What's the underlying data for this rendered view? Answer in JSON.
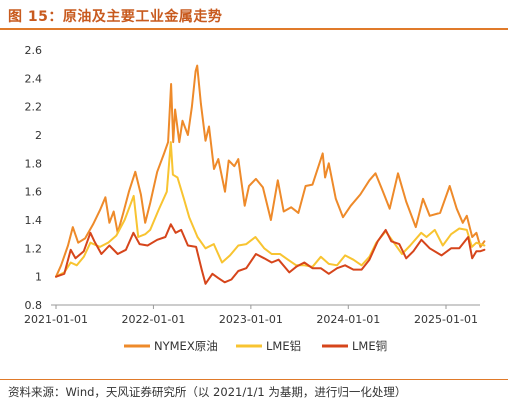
{
  "figure": {
    "title": "图 15：原油及主要工业金属走势",
    "source": "资料来源：Wind，天风证券研究所（以 2021/1/1 为基期，进行归一化处理）"
  },
  "colors": {
    "nymex": "#ee8a2a",
    "lme_al": "#f8c431",
    "lme_cu": "#d6451b",
    "rule": "#e07a2a"
  },
  "chart_data": {
    "type": "line",
    "title": "",
    "xlabel": "",
    "ylabel": "",
    "x_ticks": [
      "2021-01-01",
      "2022-01-01",
      "2023-01-01",
      "2024-01-01",
      "2025-01-01"
    ],
    "ylim": [
      0.8,
      2.6
    ],
    "y_ticks": [
      "0.8",
      "1",
      "1.2",
      "1.4",
      "1.6",
      "1.8",
      "2",
      "2.2",
      "2.4",
      "2.6"
    ],
    "grid": false,
    "legend_position": "bottom",
    "series": [
      {
        "name": "NYMEX原油",
        "color_key": "nymex",
        "points": [
          [
            "2021-01-01",
            1.0
          ],
          [
            "2021-01-20",
            1.08
          ],
          [
            "2021-02-15",
            1.22
          ],
          [
            "2021-03-05",
            1.35
          ],
          [
            "2021-03-25",
            1.24
          ],
          [
            "2021-04-20",
            1.27
          ],
          [
            "2021-05-20",
            1.37
          ],
          [
            "2021-06-15",
            1.47
          ],
          [
            "2021-07-05",
            1.56
          ],
          [
            "2021-07-20",
            1.38
          ],
          [
            "2021-08-05",
            1.46
          ],
          [
            "2021-08-20",
            1.31
          ],
          [
            "2021-09-10",
            1.45
          ],
          [
            "2021-10-01",
            1.6
          ],
          [
            "2021-10-25",
            1.74
          ],
          [
            "2021-11-15",
            1.58
          ],
          [
            "2021-12-01",
            1.38
          ],
          [
            "2021-12-20",
            1.52
          ],
          [
            "2022-01-15",
            1.74
          ],
          [
            "2022-02-10",
            1.87
          ],
          [
            "2022-02-25",
            1.95
          ],
          [
            "2022-03-08",
            2.36
          ],
          [
            "2022-03-16",
            1.95
          ],
          [
            "2022-03-23",
            2.18
          ],
          [
            "2022-04-08",
            1.95
          ],
          [
            "2022-04-20",
            2.1
          ],
          [
            "2022-05-10",
            2.0
          ],
          [
            "2022-05-25",
            2.2
          ],
          [
            "2022-06-08",
            2.45
          ],
          [
            "2022-06-14",
            2.49
          ],
          [
            "2022-06-28",
            2.22
          ],
          [
            "2022-07-15",
            1.96
          ],
          [
            "2022-07-28",
            2.06
          ],
          [
            "2022-08-16",
            1.76
          ],
          [
            "2022-09-01",
            1.83
          ],
          [
            "2022-09-26",
            1.6
          ],
          [
            "2022-10-10",
            1.82
          ],
          [
            "2022-10-31",
            1.78
          ],
          [
            "2022-11-15",
            1.83
          ],
          [
            "2022-12-09",
            1.5
          ],
          [
            "2022-12-25",
            1.64
          ],
          [
            "2023-01-20",
            1.69
          ],
          [
            "2023-02-15",
            1.63
          ],
          [
            "2023-03-17",
            1.4
          ],
          [
            "2023-04-12",
            1.68
          ],
          [
            "2023-05-04",
            1.46
          ],
          [
            "2023-06-01",
            1.49
          ],
          [
            "2023-06-28",
            1.45
          ],
          [
            "2023-07-25",
            1.64
          ],
          [
            "2023-08-20",
            1.65
          ],
          [
            "2023-09-27",
            1.87
          ],
          [
            "2023-10-06",
            1.7
          ],
          [
            "2023-10-20",
            1.8
          ],
          [
            "2023-11-15",
            1.55
          ],
          [
            "2023-12-12",
            1.42
          ],
          [
            "2024-01-10",
            1.5
          ],
          [
            "2024-02-15",
            1.58
          ],
          [
            "2024-03-20",
            1.68
          ],
          [
            "2024-04-12",
            1.73
          ],
          [
            "2024-05-10",
            1.6
          ],
          [
            "2024-06-04",
            1.48
          ],
          [
            "2024-07-05",
            1.73
          ],
          [
            "2024-08-05",
            1.53
          ],
          [
            "2024-09-10",
            1.35
          ],
          [
            "2024-10-07",
            1.55
          ],
          [
            "2024-11-01",
            1.43
          ],
          [
            "2024-12-10",
            1.45
          ],
          [
            "2025-01-15",
            1.64
          ],
          [
            "2025-02-10",
            1.48
          ],
          [
            "2025-03-05",
            1.38
          ],
          [
            "2025-03-20",
            1.43
          ],
          [
            "2025-04-09",
            1.28
          ],
          [
            "2025-04-25",
            1.31
          ],
          [
            "2025-05-10",
            1.21
          ],
          [
            "2025-05-25",
            1.25
          ]
        ]
      },
      {
        "name": "LME铝",
        "color_key": "lme_al",
        "points": [
          [
            "2021-01-01",
            1.0
          ],
          [
            "2021-02-01",
            1.03
          ],
          [
            "2021-02-25",
            1.1
          ],
          [
            "2021-03-20",
            1.08
          ],
          [
            "2021-04-15",
            1.14
          ],
          [
            "2021-05-10",
            1.24
          ],
          [
            "2021-06-15",
            1.21
          ],
          [
            "2021-07-15",
            1.24
          ],
          [
            "2021-08-15",
            1.29
          ],
          [
            "2021-09-15",
            1.4
          ],
          [
            "2021-10-19",
            1.57
          ],
          [
            "2021-11-05",
            1.28
          ],
          [
            "2021-12-01",
            1.3
          ],
          [
            "2021-12-20",
            1.33
          ],
          [
            "2022-01-20",
            1.47
          ],
          [
            "2022-02-20",
            1.6
          ],
          [
            "2022-03-07",
            1.95
          ],
          [
            "2022-03-15",
            1.72
          ],
          [
            "2022-04-01",
            1.7
          ],
          [
            "2022-04-25",
            1.55
          ],
          [
            "2022-05-15",
            1.42
          ],
          [
            "2022-06-15",
            1.28
          ],
          [
            "2022-07-15",
            1.2
          ],
          [
            "2022-08-15",
            1.23
          ],
          [
            "2022-09-15",
            1.1
          ],
          [
            "2022-10-15",
            1.15
          ],
          [
            "2022-11-15",
            1.22
          ],
          [
            "2022-12-15",
            1.23
          ],
          [
            "2023-01-18",
            1.28
          ],
          [
            "2023-02-20",
            1.2
          ],
          [
            "2023-03-20",
            1.16
          ],
          [
            "2023-04-20",
            1.16
          ],
          [
            "2023-05-20",
            1.12
          ],
          [
            "2023-06-20",
            1.08
          ],
          [
            "2023-07-20",
            1.08
          ],
          [
            "2023-08-20",
            1.07
          ],
          [
            "2023-09-20",
            1.14
          ],
          [
            "2023-10-20",
            1.09
          ],
          [
            "2023-11-20",
            1.08
          ],
          [
            "2023-12-20",
            1.15
          ],
          [
            "2024-01-20",
            1.12
          ],
          [
            "2024-02-20",
            1.08
          ],
          [
            "2024-03-20",
            1.14
          ],
          [
            "2024-04-15",
            1.24
          ],
          [
            "2024-05-20",
            1.32
          ],
          [
            "2024-06-20",
            1.24
          ],
          [
            "2024-07-20",
            1.16
          ],
          [
            "2024-08-20",
            1.22
          ],
          [
            "2024-09-30",
            1.31
          ],
          [
            "2024-10-20",
            1.28
          ],
          [
            "2024-11-20",
            1.33
          ],
          [
            "2024-12-20",
            1.22
          ],
          [
            "2025-01-20",
            1.3
          ],
          [
            "2025-02-20",
            1.34
          ],
          [
            "2025-03-20",
            1.33
          ],
          [
            "2025-04-08",
            1.21
          ],
          [
            "2025-04-25",
            1.24
          ],
          [
            "2025-05-25",
            1.22
          ]
        ]
      },
      {
        "name": "LME铜",
        "color_key": "lme_cu",
        "points": [
          [
            "2021-01-01",
            1.0
          ],
          [
            "2021-02-01",
            1.02
          ],
          [
            "2021-02-25",
            1.19
          ],
          [
            "2021-03-15",
            1.13
          ],
          [
            "2021-04-15",
            1.18
          ],
          [
            "2021-05-10",
            1.31
          ],
          [
            "2021-05-25",
            1.25
          ],
          [
            "2021-06-20",
            1.16
          ],
          [
            "2021-07-20",
            1.22
          ],
          [
            "2021-08-20",
            1.16
          ],
          [
            "2021-09-20",
            1.19
          ],
          [
            "2021-10-18",
            1.31
          ],
          [
            "2021-11-10",
            1.23
          ],
          [
            "2021-12-10",
            1.22
          ],
          [
            "2022-01-15",
            1.26
          ],
          [
            "2022-02-15",
            1.28
          ],
          [
            "2022-03-07",
            1.37
          ],
          [
            "2022-03-25",
            1.31
          ],
          [
            "2022-04-15",
            1.33
          ],
          [
            "2022-05-10",
            1.22
          ],
          [
            "2022-06-10",
            1.21
          ],
          [
            "2022-07-01",
            1.05
          ],
          [
            "2022-07-15",
            0.95
          ],
          [
            "2022-08-10",
            1.02
          ],
          [
            "2022-09-01",
            0.99
          ],
          [
            "2022-09-25",
            0.96
          ],
          [
            "2022-10-20",
            0.98
          ],
          [
            "2022-11-15",
            1.04
          ],
          [
            "2022-12-15",
            1.06
          ],
          [
            "2023-01-20",
            1.16
          ],
          [
            "2023-02-20",
            1.13
          ],
          [
            "2023-03-20",
            1.1
          ],
          [
            "2023-04-15",
            1.12
          ],
          [
            "2023-05-25",
            1.03
          ],
          [
            "2023-06-20",
            1.07
          ],
          [
            "2023-07-20",
            1.1
          ],
          [
            "2023-08-20",
            1.06
          ],
          [
            "2023-09-20",
            1.06
          ],
          [
            "2023-10-20",
            1.02
          ],
          [
            "2023-11-20",
            1.06
          ],
          [
            "2023-12-20",
            1.08
          ],
          [
            "2024-01-20",
            1.05
          ],
          [
            "2024-02-20",
            1.05
          ],
          [
            "2024-03-20",
            1.12
          ],
          [
            "2024-04-20",
            1.25
          ],
          [
            "2024-05-20",
            1.33
          ],
          [
            "2024-06-10",
            1.25
          ],
          [
            "2024-07-10",
            1.23
          ],
          [
            "2024-08-05",
            1.13
          ],
          [
            "2024-09-01",
            1.18
          ],
          [
            "2024-10-01",
            1.26
          ],
          [
            "2024-11-01",
            1.2
          ],
          [
            "2024-12-15",
            1.15
          ],
          [
            "2025-01-20",
            1.2
          ],
          [
            "2025-02-20",
            1.2
          ],
          [
            "2025-03-25",
            1.28
          ],
          [
            "2025-04-09",
            1.13
          ],
          [
            "2025-04-25",
            1.18
          ],
          [
            "2025-05-10",
            1.18
          ],
          [
            "2025-05-25",
            1.19
          ]
        ]
      }
    ]
  }
}
